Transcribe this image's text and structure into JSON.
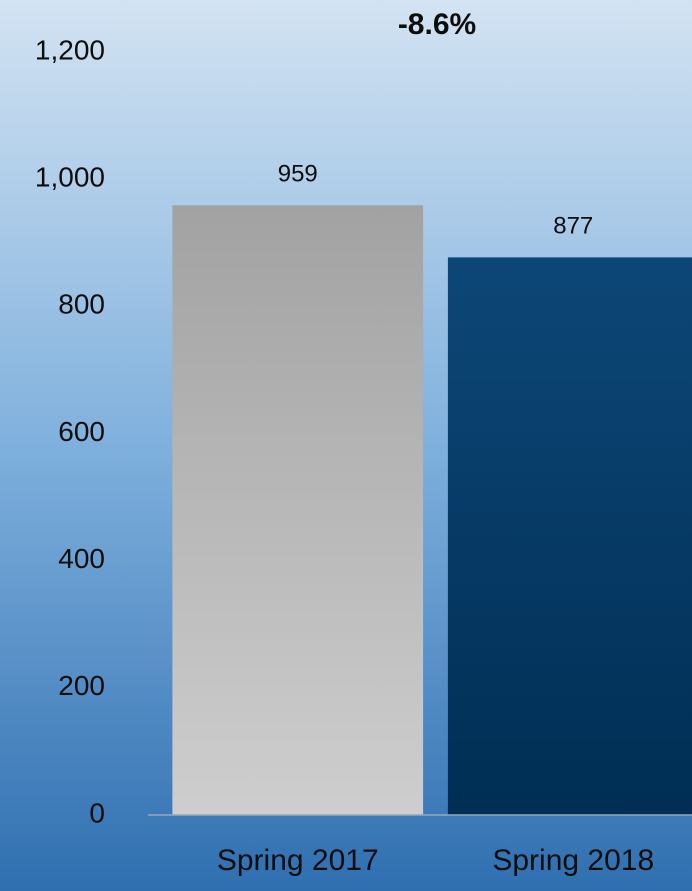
{
  "chart_data": {
    "type": "bar",
    "annotation": "-8.6%",
    "categories": [
      "Spring 2017",
      "Spring 2018"
    ],
    "values": [
      959,
      877
    ],
    "colors": [
      "#b4b4b4",
      "#003d70"
    ],
    "ylim": [
      0,
      1200
    ],
    "yticks": [
      0,
      200,
      400,
      600,
      800,
      {
        "value": 1000,
        "label": "1,000"
      },
      {
        "value": 1200,
        "label": "1,200"
      }
    ],
    "grid": false
  }
}
